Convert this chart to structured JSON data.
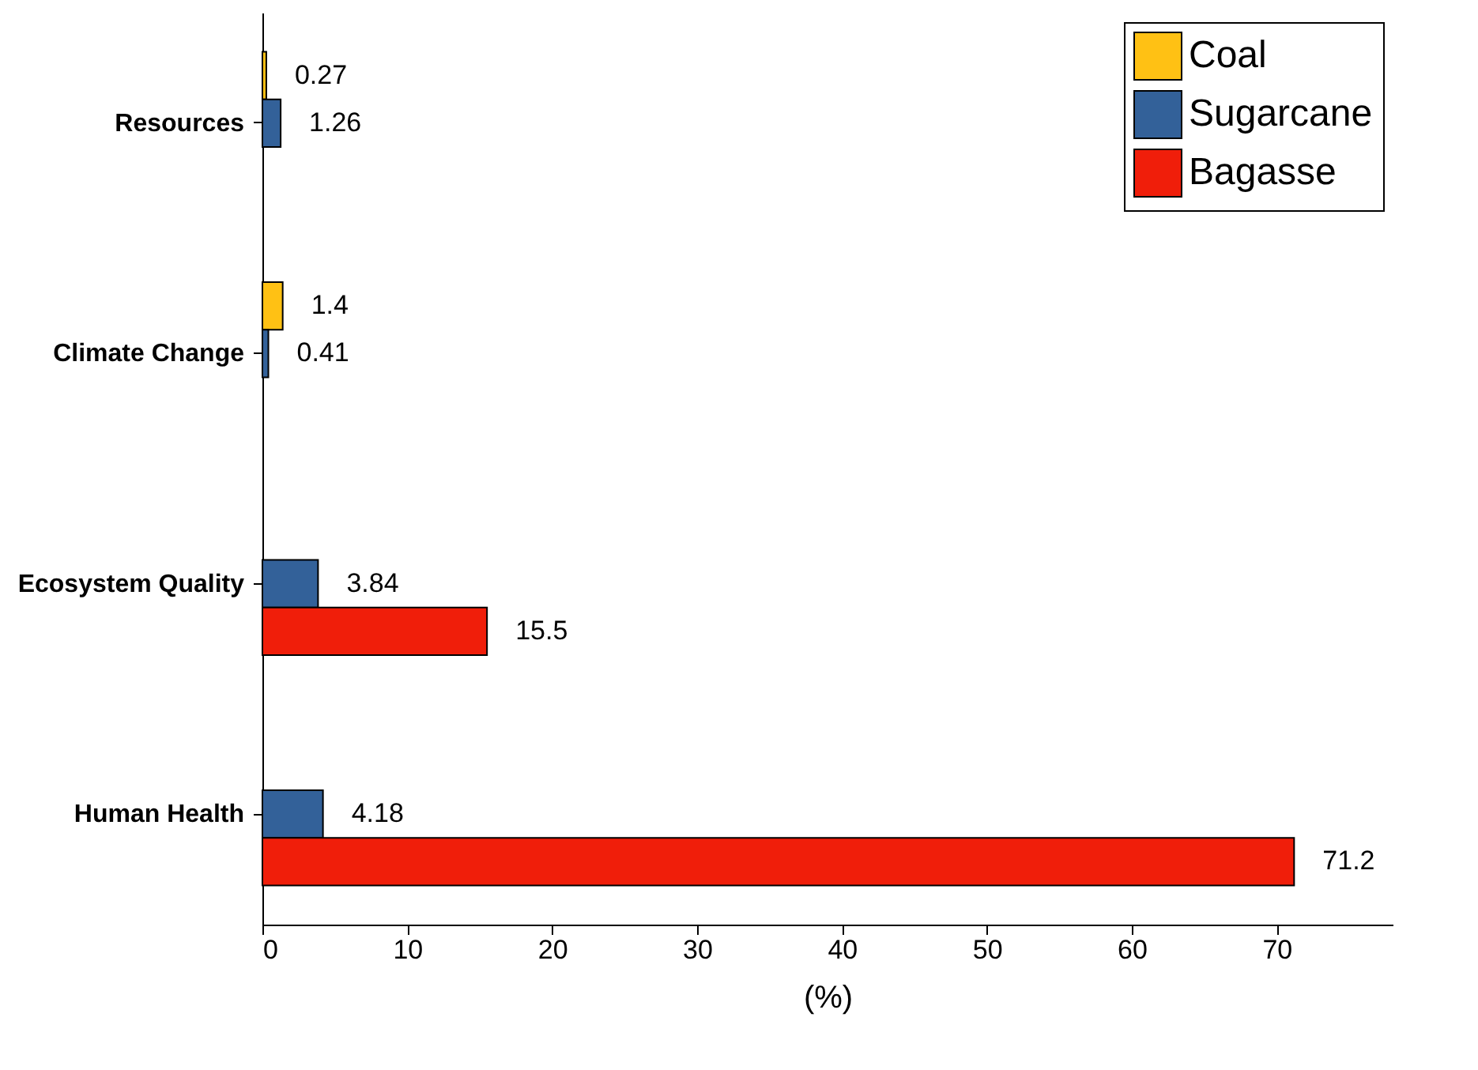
{
  "chart_data": {
    "type": "bar",
    "orientation": "horizontal",
    "xlabel": "(%)",
    "categories": [
      "Resources",
      "Climate Change",
      "Ecosystem Quality",
      "Human Health"
    ],
    "series": [
      {
        "name": "Coal",
        "color": "#ffc114",
        "values": [
          0.27,
          1.4,
          null,
          null
        ]
      },
      {
        "name": "Sugarcane",
        "color": "#336199",
        "values": [
          1.26,
          0.41,
          3.84,
          4.18
        ]
      },
      {
        "name": "Bagasse",
        "color": "#f01e0a",
        "values": [
          null,
          null,
          15.5,
          71.2
        ]
      }
    ],
    "xlim": [
      0,
      78
    ],
    "xticks": [
      0,
      10,
      20,
      30,
      40,
      50,
      60,
      70
    ],
    "data_labels": true,
    "legend": "top right"
  }
}
